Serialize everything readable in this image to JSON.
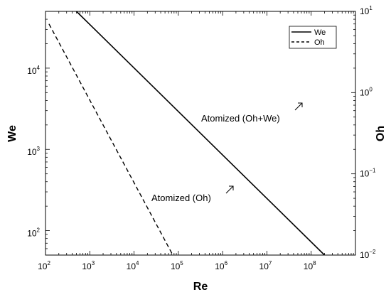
{
  "chart_data": {
    "type": "line",
    "x_scale": "log",
    "y_left_scale": "log",
    "y_right_scale": "log",
    "xlabel": "Re",
    "ylabel_left": "We",
    "ylabel_right": "Oh",
    "xlim": [
      100,
      1000000000
    ],
    "ylim_left": [
      50,
      50000
    ],
    "ylim_right": [
      0.01,
      10
    ],
    "x_ticks": [
      {
        "base": "10",
        "exp": "2"
      },
      {
        "base": "10",
        "exp": "3"
      },
      {
        "base": "10",
        "exp": "4"
      },
      {
        "base": "10",
        "exp": "5"
      },
      {
        "base": "10",
        "exp": "6"
      },
      {
        "base": "10",
        "exp": "7"
      },
      {
        "base": "10",
        "exp": "8"
      }
    ],
    "y_left_ticks": [
      {
        "base": "10",
        "exp": "2"
      },
      {
        "base": "10",
        "exp": "3"
      },
      {
        "base": "10",
        "exp": "4"
      }
    ],
    "y_right_ticks": [
      {
        "base": "10",
        "exp": "−2"
      },
      {
        "base": "10",
        "exp": "−1"
      },
      {
        "base": "10",
        "exp": "0"
      },
      {
        "base": "10",
        "exp": "1"
      }
    ],
    "series": [
      {
        "name": "We",
        "axis": "left",
        "style": "solid",
        "color": "#000000",
        "x": [
          500,
          200000000
        ],
        "y": [
          50000,
          50
        ]
      },
      {
        "name": "Oh",
        "axis": "right",
        "style": "dashed",
        "color": "#000000",
        "x": [
          120,
          75000
        ],
        "y": [
          7,
          0.01
        ]
      }
    ],
    "annotations": [
      {
        "text": "Atomized (Oh+We)",
        "arrow": "up-right"
      },
      {
        "text": "Atomized (Oh)",
        "arrow": "up-right"
      }
    ],
    "legend": {
      "position": "top-right",
      "entries": [
        {
          "label": "We",
          "style": "solid"
        },
        {
          "label": "Oh",
          "style": "dashed"
        }
      ]
    },
    "grid": false
  }
}
